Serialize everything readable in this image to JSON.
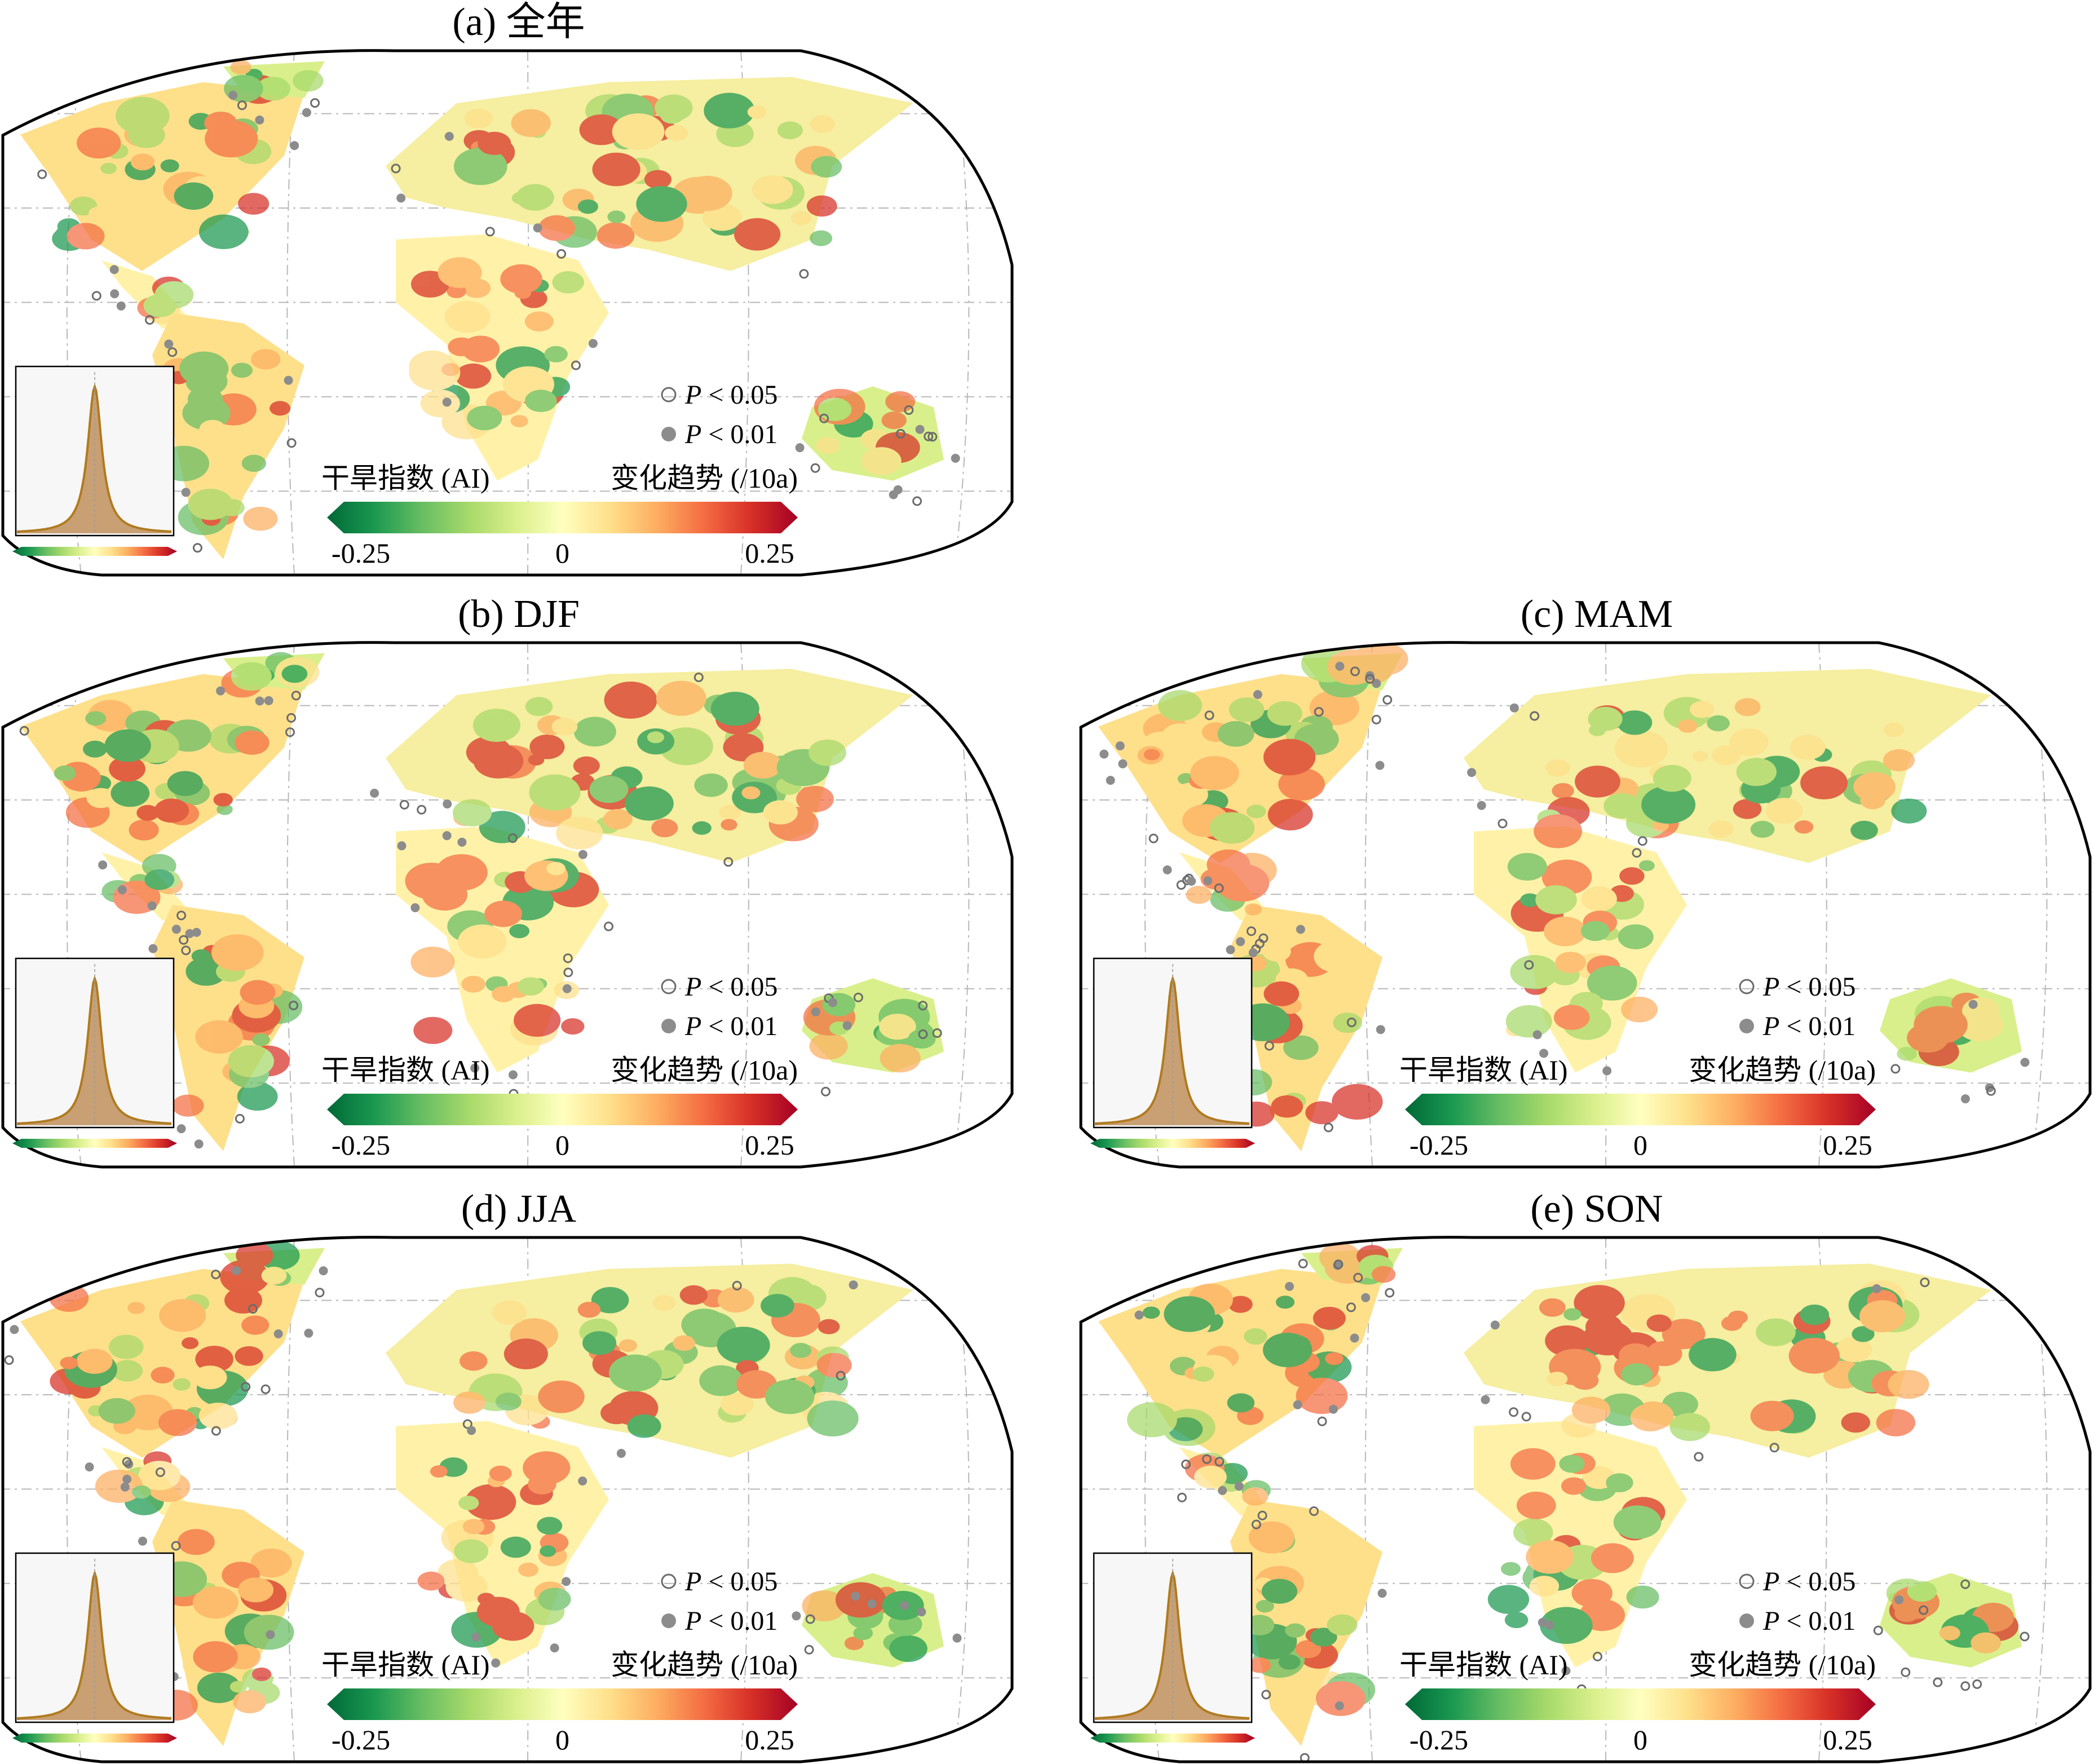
{
  "panels": [
    {
      "id": "a",
      "title": "(a) 全年"
    },
    {
      "id": "b",
      "title": "(b) DJF"
    },
    {
      "id": "c",
      "title": "(c) MAM"
    },
    {
      "id": "d",
      "title": "(d) JJA"
    },
    {
      "id": "e",
      "title": "(e) SON"
    }
  ],
  "legend": {
    "p005_italic": "P",
    "p005_rest": " < 0.05",
    "p001_italic": "P",
    "p001_rest": " < 0.01"
  },
  "colorbar": {
    "left_label": "干旱指数 (AI)",
    "right_label": "变化趋势 (/10a)",
    "tick_min": "-0.25",
    "tick_mid": "0",
    "tick_max": "0.25",
    "range": [
      -0.25,
      0.25
    ],
    "colors": [
      "#006837",
      "#1a9850",
      "#66bd63",
      "#a6d96a",
      "#d9ef8b",
      "#ffffbf",
      "#fee08b",
      "#fdae61",
      "#f46d43",
      "#d73027",
      "#a50026"
    ]
  },
  "colors": {
    "open_marker": "#6b6b6b",
    "filled_marker": "#8c8c8c",
    "hist_fill": "#c9a074",
    "hist_line": "#b07a1e",
    "frame": "#000000",
    "graticule": "#b8b8b8"
  }
}
